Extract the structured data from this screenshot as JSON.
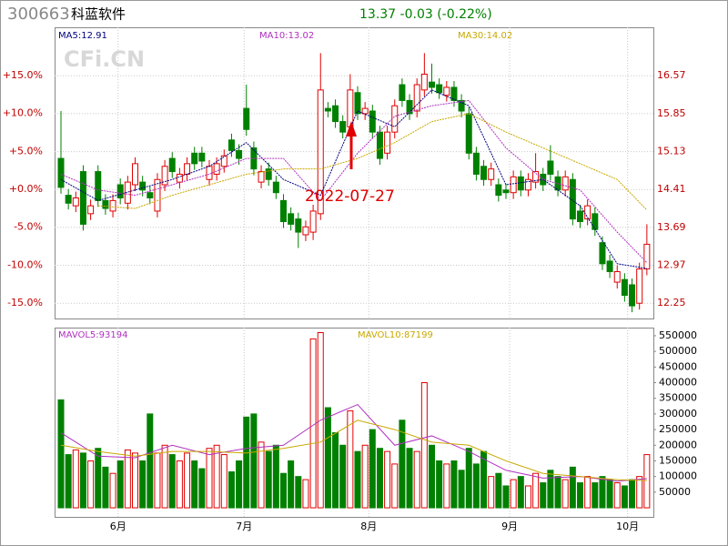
{
  "chart_data": {
    "type": "candlestick",
    "code": "300663",
    "name": "科蓝软件",
    "quote": "13.37 -0.03 (-0.22%)",
    "watermark": "CFi.CN",
    "annotation": "2022-07-27",
    "open": [
      15.0,
      14.3,
      14.1,
      14.75,
      13.95,
      14.75,
      14.2,
      14.0,
      14.5,
      14.15,
      14.5,
      14.55,
      14.35,
      14.0,
      14.5,
      15.0,
      14.55,
      14.7,
      15.1,
      15.1,
      14.6,
      14.7,
      14.85,
      15.35,
      15.15,
      15.95,
      15.2,
      14.55,
      14.8,
      14.55,
      14.2,
      13.95,
      13.85,
      13.55,
      13.6,
      13.95,
      15.95,
      16.0,
      15.7,
      15.6,
      16.25,
      15.85,
      15.9,
      15.5,
      15.1,
      15.5,
      16.4,
      16.1,
      15.9,
      16.3,
      16.45,
      16.4,
      16.2,
      16.35,
      16.1,
      15.85,
      15.1,
      14.85,
      14.6,
      14.5,
      14.4,
      14.35,
      14.65,
      14.4,
      14.55,
      14.7,
      14.95,
      14.65,
      14.4,
      14.6,
      14.0,
      13.85,
      13.95,
      13.4,
      13.05,
      12.65,
      12.7,
      12.6,
      12.25,
      12.9
    ],
    "high": [
      15.9,
      14.42,
      14.37,
      14.87,
      14.22,
      14.87,
      14.32,
      14.32,
      14.62,
      14.67,
      15.02,
      14.67,
      14.47,
      14.72,
      14.97,
      15.12,
      14.82,
      15.02,
      15.22,
      15.22,
      14.97,
      15.02,
      15.17,
      15.47,
      15.27,
      16.4,
      15.32,
      14.87,
      14.92,
      14.67,
      14.32,
      14.07,
      13.97,
      13.82,
      14.12,
      17.0,
      16.07,
      16.12,
      15.82,
      16.6,
      16.37,
      16.07,
      16.02,
      15.62,
      15.62,
      16.12,
      16.52,
      16.22,
      16.52,
      17.0,
      16.8,
      16.52,
      16.47,
      16.47,
      16.22,
      15.97,
      15.22,
      14.97,
      14.92,
      14.62,
      14.52,
      14.77,
      14.77,
      14.72,
      15.1,
      14.82,
      15.25,
      14.77,
      14.77,
      14.72,
      14.12,
      14.22,
      14.07,
      13.52,
      13.17,
      12.97,
      12.82,
      12.72,
      13.02,
      13.75
    ],
    "low": [
      14.33,
      14.03,
      13.98,
      13.63,
      13.83,
      14.08,
      13.93,
      13.88,
      14.13,
      14.03,
      14.38,
      14.28,
      14.13,
      13.88,
      14.38,
      14.63,
      14.43,
      14.58,
      14.78,
      14.83,
      14.48,
      14.58,
      14.73,
      15.03,
      14.88,
      15.43,
      14.68,
      14.43,
      14.48,
      14.23,
      13.68,
      13.63,
      13.3,
      13.43,
      13.45,
      13.83,
      15.78,
      15.58,
      15.38,
      15.48,
      15.73,
      15.73,
      15.38,
      14.88,
      14.98,
      15.38,
      15.98,
      15.73,
      15.78,
      16.18,
      16.23,
      16.13,
      16.08,
      15.98,
      15.78,
      14.98,
      14.58,
      14.48,
      14.48,
      14.18,
      14.23,
      14.23,
      14.28,
      14.28,
      14.43,
      14.38,
      14.58,
      14.28,
      14.28,
      13.73,
      13.68,
      13.73,
      13.53,
      12.88,
      12.73,
      12.53,
      12.28,
      12.08,
      12.13,
      12.78
    ],
    "close": [
      14.45,
      14.15,
      14.25,
      13.75,
      14.1,
      14.2,
      14.05,
      14.2,
      14.25,
      14.55,
      14.9,
      14.4,
      14.25,
      14.6,
      14.85,
      14.75,
      14.7,
      14.9,
      14.9,
      14.95,
      14.85,
      14.9,
      15.05,
      15.15,
      15.0,
      15.55,
      14.8,
      14.75,
      14.6,
      14.35,
      13.8,
      13.75,
      13.6,
      13.7,
      14.0,
      16.3,
      15.9,
      15.7,
      15.5,
      16.3,
      15.85,
      15.95,
      15.5,
      15.0,
      15.5,
      16.0,
      16.1,
      15.85,
      16.4,
      16.6,
      16.35,
      16.25,
      16.35,
      16.1,
      15.9,
      15.1,
      14.7,
      14.6,
      14.8,
      14.3,
      14.35,
      14.65,
      14.4,
      14.6,
      14.75,
      14.5,
      14.7,
      14.4,
      14.65,
      13.85,
      13.8,
      14.1,
      13.65,
      13.0,
      12.85,
      12.85,
      12.4,
      12.2,
      12.9,
      13.37
    ],
    "volume": [
      345000,
      170000,
      185000,
      175000,
      150000,
      190000,
      130000,
      110000,
      150000,
      185000,
      175000,
      150000,
      300000,
      175000,
      200000,
      170000,
      150000,
      175000,
      150000,
      125000,
      190000,
      200000,
      170000,
      115000,
      150000,
      290000,
      300000,
      210000,
      180000,
      200000,
      110000,
      150000,
      100000,
      90000,
      540000,
      560000,
      320000,
      240000,
      200000,
      310000,
      180000,
      200000,
      250000,
      190000,
      180000,
      140000,
      280000,
      190000,
      180000,
      400000,
      200000,
      150000,
      140000,
      150000,
      120000,
      190000,
      140000,
      180000,
      100000,
      110000,
      70000,
      90000,
      100000,
      70000,
      110000,
      80000,
      120000,
      100000,
      90000,
      130000,
      80000,
      100000,
      80000,
      100000,
      90000,
      80000,
      70000,
      90000,
      100000,
      170000
    ],
    "up_color": "#e00000",
    "down_color": "#008000",
    "ylim": [
      11.96,
      17.49
    ],
    "yticks": [
      16.57,
      15.85,
      15.13,
      14.41,
      13.69,
      12.97,
      12.25
    ],
    "y2lim": [
      -17.04,
      21.36
    ],
    "y2ticks": [
      {
        "value": 15,
        "label": "+15.0%"
      },
      {
        "value": 10,
        "label": "+10.0%"
      },
      {
        "value": 5,
        "label": "+5.0%"
      },
      {
        "value": 0,
        "label": "+0.0%"
      },
      {
        "value": -5,
        "label": "-5.0%"
      },
      {
        "value": -10,
        "label": "-10.0%"
      },
      {
        "value": -15,
        "label": "-15.0%"
      }
    ],
    "vlim": [
      -29000,
      576000
    ],
    "vticks": [
      550000,
      500000,
      450000,
      400000,
      350000,
      300000,
      250000,
      200000,
      150000,
      100000,
      50000
    ],
    "xticks": [
      {
        "value": 7.7,
        "label": "6月"
      },
      {
        "value": 24.7,
        "label": "7月"
      },
      {
        "value": 41.5,
        "label": "8月"
      },
      {
        "value": 60.5,
        "label": "9月"
      },
      {
        "value": 76.4,
        "label": "10月"
      }
    ],
    "grid": true,
    "price_lines": [
      {
        "name": "MA5",
        "legend_label": "MA5:12.91",
        "color": "#000080",
        "x": [
          0,
          5,
          10,
          15,
          20,
          25,
          30,
          35,
          40,
          45,
          50,
          55,
          60,
          65,
          70,
          75,
          79
        ],
        "values": [
          14.6,
          14.2,
          14.4,
          14.6,
          14.85,
          15.3,
          14.6,
          14.3,
          15.9,
          15.6,
          16.3,
          16.0,
          14.5,
          14.6,
          14.1,
          13.0,
          12.91
        ]
      },
      {
        "name": "MA10",
        "legend_label": "MA10:13.02",
        "color": "#b030c0",
        "x": [
          0,
          5,
          10,
          15,
          20,
          25,
          30,
          35,
          40,
          45,
          50,
          55,
          60,
          65,
          70,
          75,
          79
        ],
        "values": [
          14.7,
          14.4,
          14.3,
          14.5,
          14.7,
          15.0,
          15.0,
          14.2,
          15.1,
          15.8,
          16.0,
          16.1,
          15.2,
          14.6,
          14.4,
          13.6,
          13.02
        ]
      },
      {
        "name": "MA30",
        "legend_label": "MA30:14.02",
        "color": "#c8a800",
        "x": [
          5,
          10,
          15,
          20,
          25,
          30,
          35,
          40,
          45,
          50,
          55,
          60,
          65,
          70,
          75,
          79
        ],
        "values": [
          14.1,
          14.05,
          14.3,
          14.5,
          14.7,
          14.8,
          14.8,
          15.0,
          15.3,
          15.7,
          15.85,
          15.5,
          15.2,
          14.9,
          14.6,
          14.02
        ]
      }
    ],
    "volume_lines": [
      {
        "name": "MAVOL5",
        "legend_label": "MAVOL5:93194",
        "color": "#b030c0",
        "x": [
          0,
          5,
          10,
          15,
          20,
          25,
          30,
          35,
          40,
          45,
          50,
          55,
          60,
          65,
          70,
          75,
          79
        ],
        "values": [
          240000,
          165000,
          160000,
          200000,
          170000,
          190000,
          200000,
          280000,
          330000,
          200000,
          230000,
          180000,
          120000,
          95000,
          100000,
          85000,
          93194
        ]
      },
      {
        "name": "MAVOL10",
        "legend_label": "MAVOL10:87199",
        "color": "#c8a800",
        "x": [
          0,
          5,
          10,
          15,
          20,
          25,
          30,
          35,
          40,
          45,
          50,
          55,
          60,
          65,
          70,
          75,
          79
        ],
        "values": [
          200000,
          180000,
          165000,
          180000,
          180000,
          175000,
          190000,
          210000,
          280000,
          250000,
          210000,
          200000,
          150000,
          110000,
          100000,
          90000,
          87199
        ]
      }
    ]
  }
}
